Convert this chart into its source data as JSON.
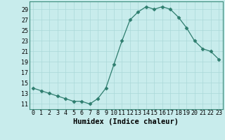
{
  "x": [
    0,
    1,
    2,
    3,
    4,
    5,
    6,
    7,
    8,
    9,
    10,
    11,
    12,
    13,
    14,
    15,
    16,
    17,
    18,
    19,
    20,
    21,
    22,
    23
  ],
  "y": [
    14.0,
    13.5,
    13.0,
    12.5,
    12.0,
    11.5,
    11.5,
    11.0,
    12.0,
    14.0,
    18.5,
    23.0,
    27.0,
    28.5,
    29.5,
    29.0,
    29.5,
    29.0,
    27.5,
    25.5,
    23.0,
    21.5,
    21.0,
    19.5
  ],
  "line_color": "#2e7d6e",
  "marker": "D",
  "marker_size": 2.5,
  "bg_color": "#c8ecec",
  "grid_color": "#aad8d8",
  "xlabel": "Humidex (Indice chaleur)",
  "xlim": [
    -0.5,
    23.5
  ],
  "ylim": [
    10.0,
    30.5
  ],
  "yticks": [
    11,
    13,
    15,
    17,
    19,
    21,
    23,
    25,
    27,
    29
  ],
  "xticks": [
    0,
    1,
    2,
    3,
    4,
    5,
    6,
    7,
    8,
    9,
    10,
    11,
    12,
    13,
    14,
    15,
    16,
    17,
    18,
    19,
    20,
    21,
    22,
    23
  ],
  "tick_fontsize": 6.0,
  "xlabel_fontsize": 7.5
}
